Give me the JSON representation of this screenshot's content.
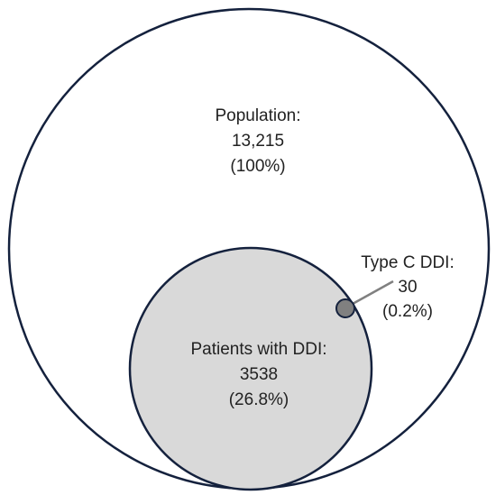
{
  "diagram": {
    "population": {
      "label": "Population:",
      "count": "13,215",
      "percent": "(100%)",
      "share": 1.0
    },
    "ddi": {
      "label": "Patients with DDI:",
      "count": "3538",
      "percent": "(26.8%)",
      "share": 0.268
    },
    "type_c": {
      "label": "Type C DDI:",
      "count": "30",
      "percent": "(0.2%)",
      "share": 0.002
    },
    "colors": {
      "outline": "#14213d",
      "ddi_fill": "#d9d9d9",
      "type_c_fill": "#808080",
      "leader_line": "#808080",
      "text": "#222222"
    }
  }
}
